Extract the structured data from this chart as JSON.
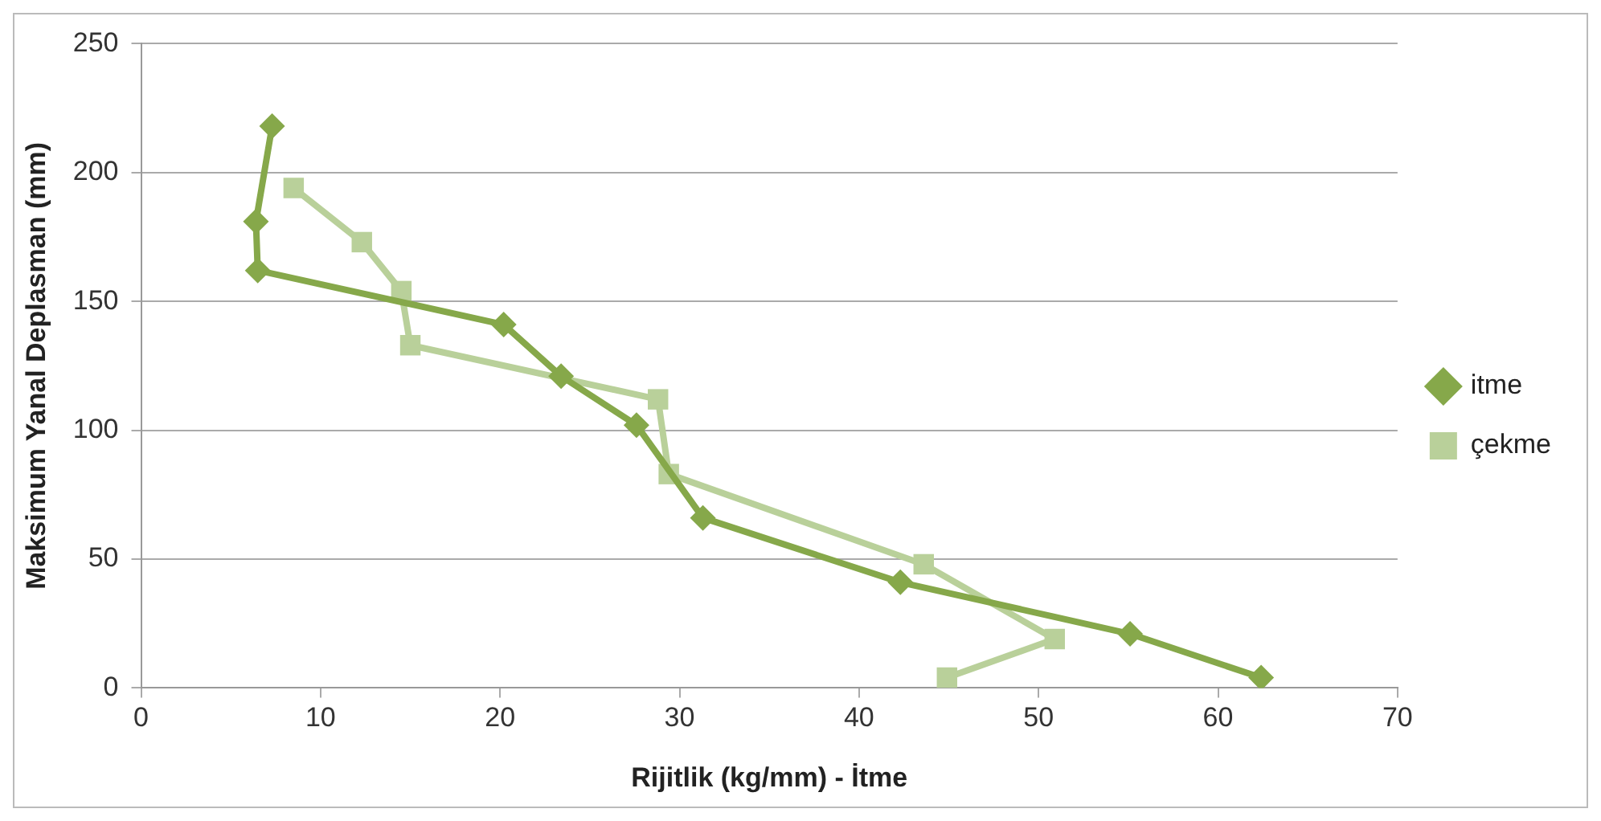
{
  "chart_data": {
    "type": "line",
    "xlabel": "Rijitlik (kg/mm) - İtme",
    "ylabel": "Maksimum Yanal Deplasman (mm)",
    "xlim": [
      0,
      70
    ],
    "xticks": [
      0,
      10,
      20,
      30,
      40,
      50,
      60,
      70
    ],
    "ylim": [
      0,
      250
    ],
    "yticks": [
      0,
      50,
      100,
      150,
      200,
      250
    ],
    "grid": "y",
    "legend": "right",
    "series": [
      {
        "name": "itme",
        "color": "#86a84a",
        "marker": "diamond",
        "x": [
          7.3,
          6.4,
          6.5,
          20.2,
          23.4,
          27.6,
          31.3,
          42.3,
          55.1,
          62.4
        ],
        "values": [
          218,
          181,
          162,
          141,
          121,
          102,
          66,
          41,
          21,
          4
        ]
      },
      {
        "name": "çekme",
        "color": "#b9d09a",
        "marker": "square",
        "x": [
          8.5,
          12.3,
          14.5,
          15,
          28.8,
          29.4,
          43.6,
          50.9,
          44.9
        ],
        "values": [
          194,
          173,
          154,
          133,
          112,
          83,
          48,
          19,
          4
        ]
      }
    ]
  }
}
